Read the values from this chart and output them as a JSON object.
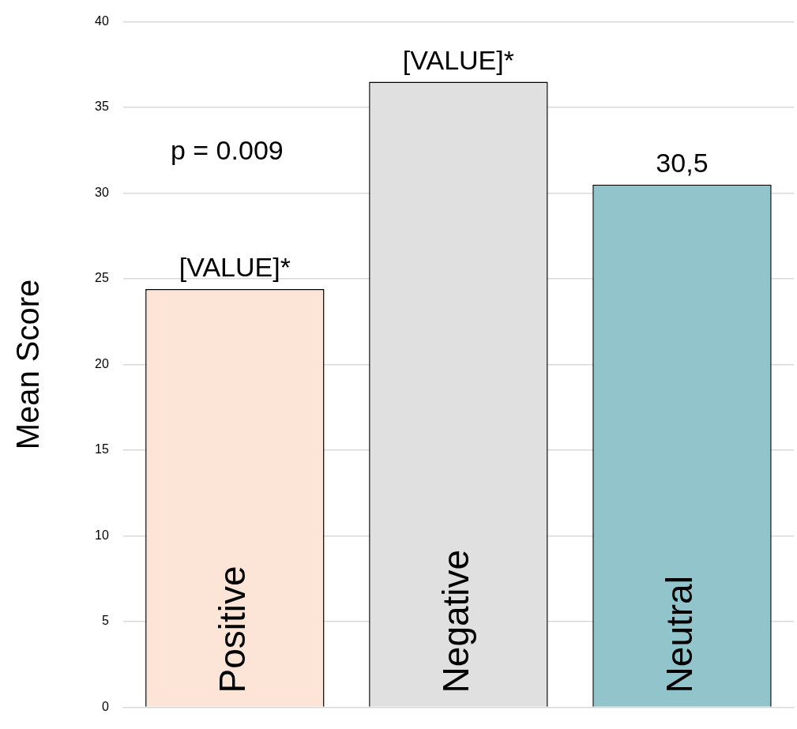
{
  "chart_data": {
    "type": "bar",
    "ylabel": "Mean Score",
    "categories": [
      "Positive",
      "Negative",
      "Neutral"
    ],
    "values": [
      24.4,
      36.5,
      30.5
    ],
    "colors": [
      "#fce4d6",
      "#e0e0e0",
      "#92c5cb"
    ],
    "value_labels": [
      "[VALUE]*",
      "[VALUE]*",
      "30,5"
    ],
    "annotations": [
      "p = 0.009"
    ],
    "ylim": [
      0,
      40
    ],
    "yticks": [
      0,
      5,
      10,
      15,
      20,
      25,
      30,
      35,
      40
    ],
    "grid": "y",
    "legend": false
  }
}
